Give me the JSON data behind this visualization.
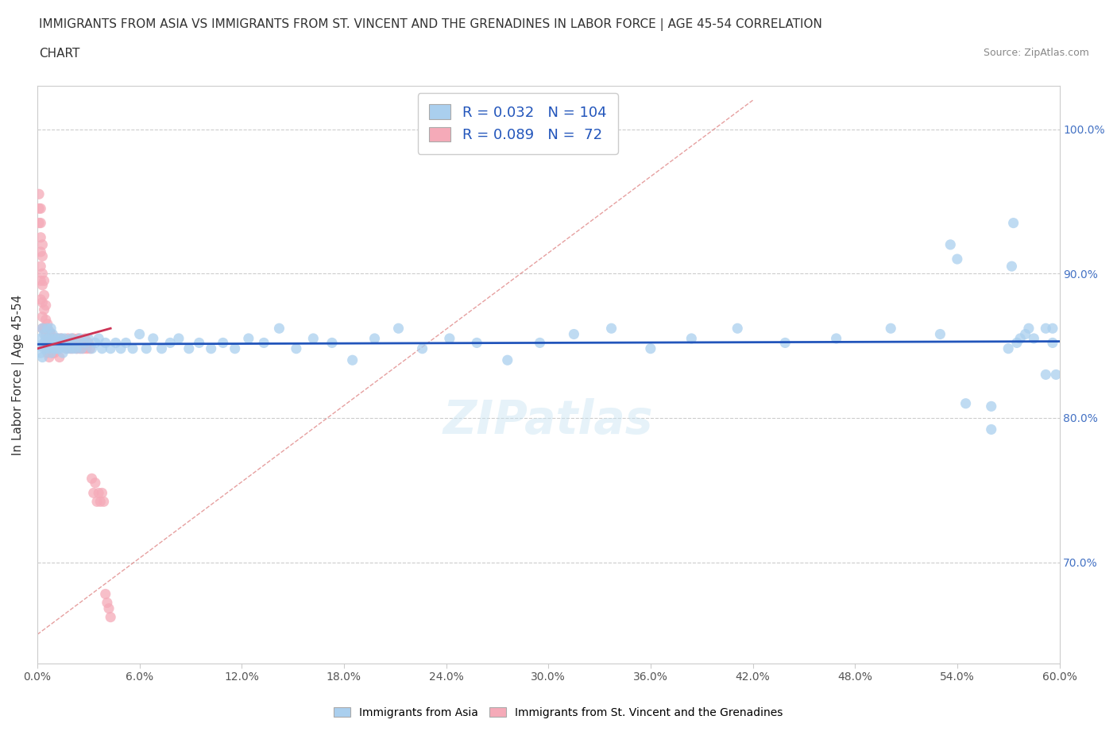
{
  "title_line1": "IMMIGRANTS FROM ASIA VS IMMIGRANTS FROM ST. VINCENT AND THE GRENADINES IN LABOR FORCE | AGE 45-54 CORRELATION",
  "title_line2": "CHART",
  "source_text": "Source: ZipAtlas.com",
  "ylabel": "In Labor Force | Age 45-54",
  "xmin": 0.0,
  "xmax": 0.6,
  "ymin": 0.63,
  "ymax": 1.03,
  "asia_R": 0.032,
  "asia_N": 104,
  "svg_R": 0.089,
  "svg_N": 72,
  "blue_color": "#aacfee",
  "pink_color": "#f5aab8",
  "trend_blue": "#2255bb",
  "trend_pink": "#cc3355",
  "diag_color": "#f0aaaa",
  "legend_blue_face": "#aacfee",
  "legend_pink_face": "#f5aab8",
  "asia_x": [
    0.001,
    0.002,
    0.002,
    0.003,
    0.003,
    0.004,
    0.004,
    0.004,
    0.005,
    0.005,
    0.006,
    0.006,
    0.007,
    0.007,
    0.008,
    0.008,
    0.008,
    0.009,
    0.009,
    0.01,
    0.01,
    0.011,
    0.011,
    0.012,
    0.012,
    0.013,
    0.013,
    0.014,
    0.015,
    0.015,
    0.016,
    0.017,
    0.018,
    0.019,
    0.02,
    0.021,
    0.022,
    0.023,
    0.025,
    0.026,
    0.028,
    0.03,
    0.032,
    0.034,
    0.036,
    0.038,
    0.04,
    0.043,
    0.046,
    0.049,
    0.052,
    0.056,
    0.06,
    0.064,
    0.068,
    0.073,
    0.078,
    0.083,
    0.089,
    0.095,
    0.102,
    0.109,
    0.116,
    0.124,
    0.133,
    0.142,
    0.152,
    0.162,
    0.173,
    0.185,
    0.198,
    0.212,
    0.226,
    0.242,
    0.258,
    0.276,
    0.295,
    0.315,
    0.337,
    0.36,
    0.384,
    0.411,
    0.439,
    0.469,
    0.501,
    0.536,
    0.573,
    0.54,
    0.572,
    0.596,
    0.58,
    0.56,
    0.545,
    0.53,
    0.598,
    0.592,
    0.575,
    0.585,
    0.582,
    0.56,
    0.577,
    0.592,
    0.596,
    0.57
  ],
  "asia_y": [
    0.85,
    0.855,
    0.845,
    0.862,
    0.842,
    0.852,
    0.858,
    0.848,
    0.855,
    0.848,
    0.852,
    0.862,
    0.848,
    0.855,
    0.853,
    0.845,
    0.862,
    0.85,
    0.858,
    0.848,
    0.855,
    0.852,
    0.848,
    0.855,
    0.848,
    0.852,
    0.848,
    0.855,
    0.852,
    0.845,
    0.855,
    0.848,
    0.852,
    0.848,
    0.855,
    0.848,
    0.852,
    0.848,
    0.855,
    0.848,
    0.852,
    0.855,
    0.848,
    0.852,
    0.855,
    0.848,
    0.852,
    0.848,
    0.852,
    0.848,
    0.852,
    0.848,
    0.858,
    0.848,
    0.855,
    0.848,
    0.852,
    0.855,
    0.848,
    0.852,
    0.848,
    0.852,
    0.848,
    0.855,
    0.852,
    0.862,
    0.848,
    0.855,
    0.852,
    0.84,
    0.855,
    0.862,
    0.848,
    0.855,
    0.852,
    0.84,
    0.852,
    0.858,
    0.862,
    0.848,
    0.855,
    0.862,
    0.852,
    0.855,
    0.862,
    0.92,
    0.935,
    0.91,
    0.905,
    0.852,
    0.858,
    0.792,
    0.81,
    0.858,
    0.83,
    0.862,
    0.852,
    0.855,
    0.862,
    0.808,
    0.855,
    0.83,
    0.862,
    0.848
  ],
  "svg_x": [
    0.001,
    0.001,
    0.001,
    0.002,
    0.002,
    0.002,
    0.002,
    0.002,
    0.002,
    0.002,
    0.003,
    0.003,
    0.003,
    0.003,
    0.003,
    0.003,
    0.003,
    0.004,
    0.004,
    0.004,
    0.004,
    0.004,
    0.005,
    0.005,
    0.005,
    0.005,
    0.006,
    0.006,
    0.006,
    0.007,
    0.007,
    0.007,
    0.008,
    0.008,
    0.009,
    0.009,
    0.01,
    0.01,
    0.011,
    0.012,
    0.013,
    0.013,
    0.014,
    0.015,
    0.016,
    0.017,
    0.018,
    0.019,
    0.02,
    0.021,
    0.022,
    0.023,
    0.024,
    0.025,
    0.026,
    0.027,
    0.028,
    0.029,
    0.03,
    0.031,
    0.032,
    0.033,
    0.034,
    0.035,
    0.036,
    0.037,
    0.038,
    0.039,
    0.04,
    0.041,
    0.042,
    0.043
  ],
  "svg_y": [
    0.955,
    0.945,
    0.935,
    0.945,
    0.935,
    0.925,
    0.915,
    0.905,
    0.895,
    0.882,
    0.92,
    0.912,
    0.9,
    0.892,
    0.88,
    0.87,
    0.862,
    0.895,
    0.885,
    0.875,
    0.862,
    0.85,
    0.878,
    0.868,
    0.858,
    0.848,
    0.865,
    0.855,
    0.845,
    0.86,
    0.852,
    0.842,
    0.858,
    0.848,
    0.855,
    0.845,
    0.855,
    0.845,
    0.852,
    0.855,
    0.852,
    0.842,
    0.855,
    0.85,
    0.852,
    0.848,
    0.855,
    0.852,
    0.848,
    0.855,
    0.852,
    0.848,
    0.855,
    0.848,
    0.852,
    0.848,
    0.855,
    0.848,
    0.852,
    0.848,
    0.758,
    0.748,
    0.755,
    0.742,
    0.748,
    0.742,
    0.748,
    0.742,
    0.678,
    0.672,
    0.668,
    0.662
  ]
}
